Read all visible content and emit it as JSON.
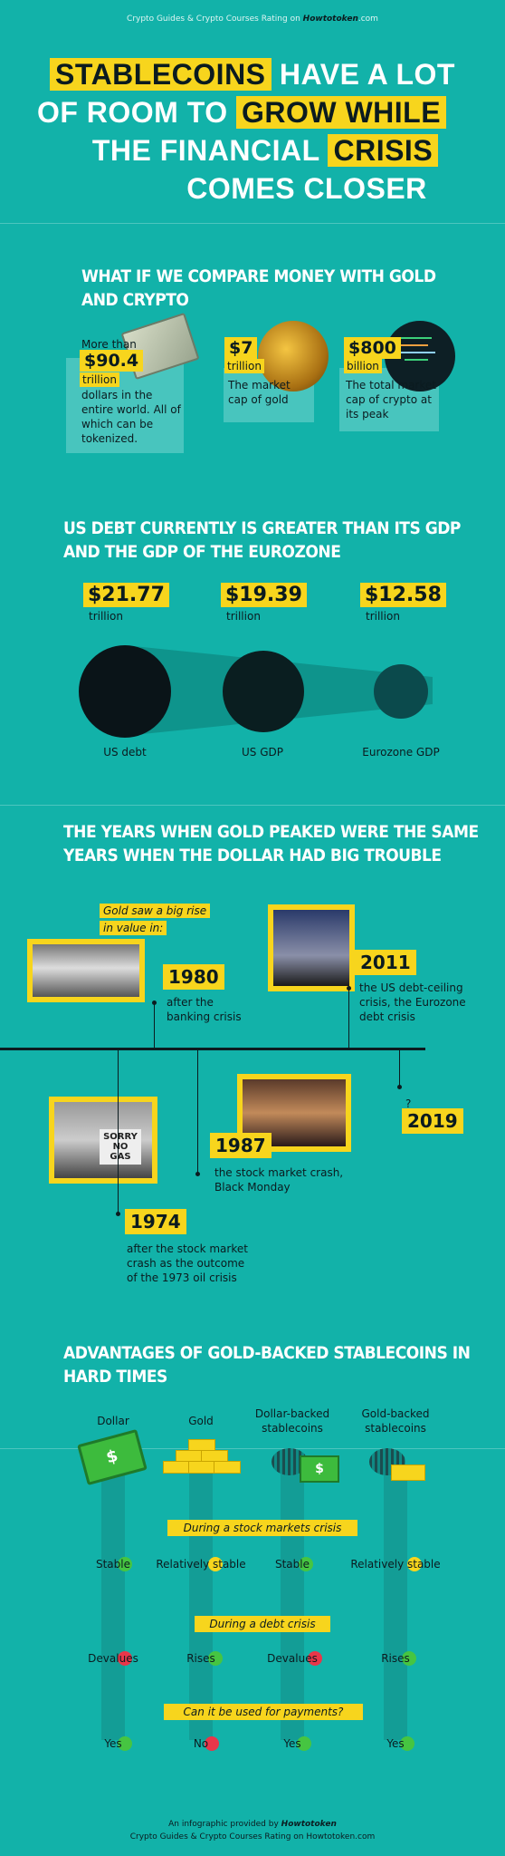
{
  "header": {
    "topline_prefix": "Crypto Guides & Crypto Courses Rating on",
    "brand": "Howtotoken",
    "topline_suffix": ".com"
  },
  "title": {
    "w1": "STABLECOINS",
    "w2": "HAVE A LOT",
    "w3": "OF ROOM TO",
    "w4": "GROW WHILE",
    "w5": "THE FINANCIAL",
    "w6": "CRISIS",
    "w7": "COMES CLOSER"
  },
  "money": {
    "heading1": "WHAT IF WE COMPARE MONEY WITH GOLD",
    "heading2": "AND CRYPTO",
    "items": [
      {
        "prefix": "More than",
        "amount": "$90.4",
        "unit": "trillion",
        "desc": "dollars in the entire world. All of which can be tokenized.",
        "icon": "dollar-bills-icon"
      },
      {
        "prefix": "",
        "amount": "$7",
        "unit": "trillion",
        "desc": "The market cap of gold",
        "icon": "gold-bars-icon"
      },
      {
        "prefix": "",
        "amount": "$800",
        "unit": "billion",
        "desc": "The total market cap of crypto at its peak",
        "icon": "code-screen-icon"
      }
    ]
  },
  "debt": {
    "heading1": "US DEBT CURRENTLY IS GREATER THAN ITS  GDP",
    "heading2": "AND THE GDP OF THE EUROZONE",
    "items": [
      {
        "amount": "$21.77",
        "unit": "trillion",
        "label": "US debt",
        "value": 21.77
      },
      {
        "amount": "$19.39",
        "unit": "trillion",
        "label": "US GDP",
        "value": 19.39
      },
      {
        "amount": "$12.58",
        "unit": "trillion",
        "label": "Eurozone GDP",
        "value": 12.58
      }
    ]
  },
  "timeline": {
    "heading1": "THE YEARS WHEN GOLD PEAKED WERE THE SAME",
    "heading2": "YEARS WHEN THE DOLLAR HAD BIG TROUBLE",
    "note1": "Gold saw a big rise",
    "note2": "in value in:",
    "events": [
      {
        "year": "1980",
        "desc1": "after the",
        "desc2": "banking crisis",
        "desc3": ""
      },
      {
        "year": "2011",
        "desc1": "the US debt-ceiling",
        "desc2": "crisis, the Eurozone",
        "desc3": "debt crisis"
      },
      {
        "year": "1974",
        "desc1": "after the stock market",
        "desc2": "crash as the outcome",
        "desc3": "of the 1973 oil crisis"
      },
      {
        "year": "1987",
        "desc1": "the stock market crash,",
        "desc2": "Black Monday",
        "desc3": ""
      },
      {
        "year": "2019",
        "desc1": "?",
        "desc2": "",
        "desc3": ""
      }
    ],
    "sign_text": "SORRY NO GAS"
  },
  "advantages": {
    "heading1": "ADVANTAGES OF GOLD-BACKED STABLECOINS IN",
    "heading2": "HARD TIMES",
    "columns": [
      "Dollar",
      "Gold",
      "Dollar-backed stablecoins",
      "Gold-backed stablecoins"
    ],
    "rows": [
      {
        "question": "During a stock markets crisis",
        "values": [
          "Stable",
          "Relatively stable",
          "Stable",
          "Relatively stable"
        ],
        "status": [
          "green",
          "yellow",
          "green",
          "yellow"
        ]
      },
      {
        "question": "During a debt crisis",
        "values": [
          "Devalues",
          "Rises",
          "Devalues",
          "Rises"
        ],
        "status": [
          "red",
          "green",
          "red",
          "green"
        ]
      },
      {
        "question": "Can it be used for payments?",
        "values": [
          "Yes",
          "No",
          "Yes",
          "Yes"
        ],
        "status": [
          "green",
          "red",
          "green",
          "green"
        ]
      }
    ],
    "colors": {
      "green": "#46c541",
      "yellow": "#f7d51d",
      "red": "#e8364a"
    }
  },
  "footer": {
    "line1_prefix": "An infographic provided by",
    "brand": "Howtotoken",
    "line2": "Crypto Guides & Crypto Courses Rating on Howtotoken.com"
  },
  "colors": {
    "background": "#12b2a9",
    "accent": "#f7d51d",
    "dark": "#0b1b1f"
  }
}
